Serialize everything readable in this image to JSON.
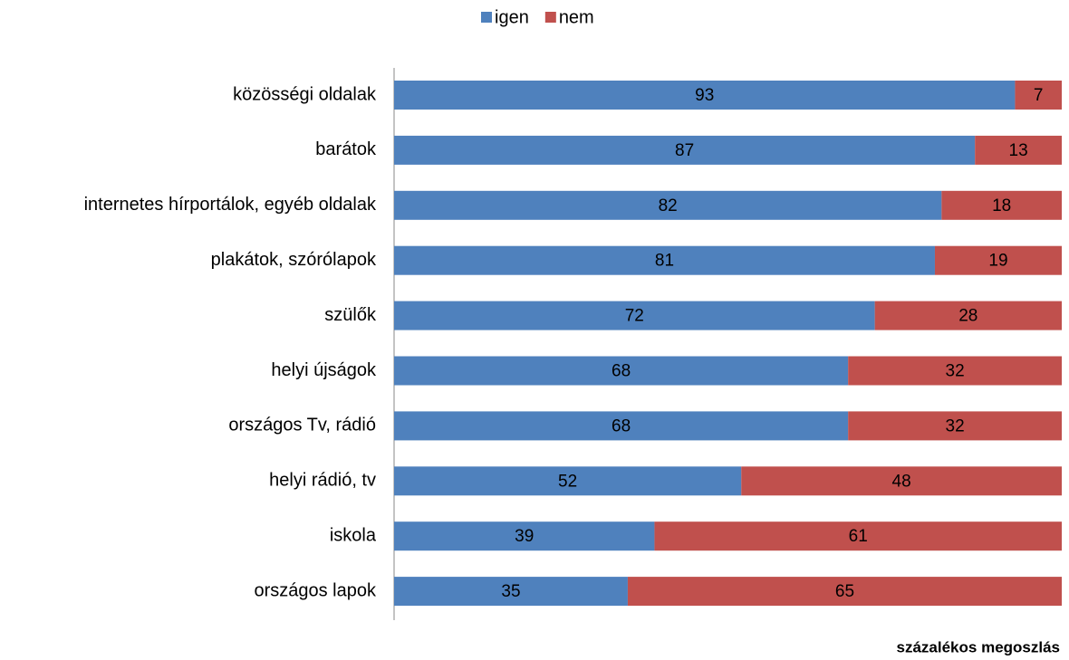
{
  "chart_data": {
    "type": "stacked_bar_horizontal",
    "categories": [
      "közösségi oldalak",
      "barátok",
      "internetes hírportálok, egyéb oldalak",
      "plakátok, szórólapok",
      "szülők",
      "helyi újságok",
      "országos Tv, rádió",
      "helyi rádió, tv",
      "iskola",
      "országos lapok"
    ],
    "series": [
      {
        "name": "igen",
        "color": "#4f81bd",
        "values": [
          93,
          87,
          82,
          81,
          72,
          68,
          68,
          52,
          39,
          35
        ]
      },
      {
        "name": "nem",
        "color": "#c0504d",
        "values": [
          7,
          13,
          18,
          19,
          28,
          32,
          32,
          48,
          61,
          65
        ]
      }
    ],
    "xlim": [
      0,
      100
    ],
    "x_label": "százalékos megoszlás",
    "legend": "top"
  }
}
